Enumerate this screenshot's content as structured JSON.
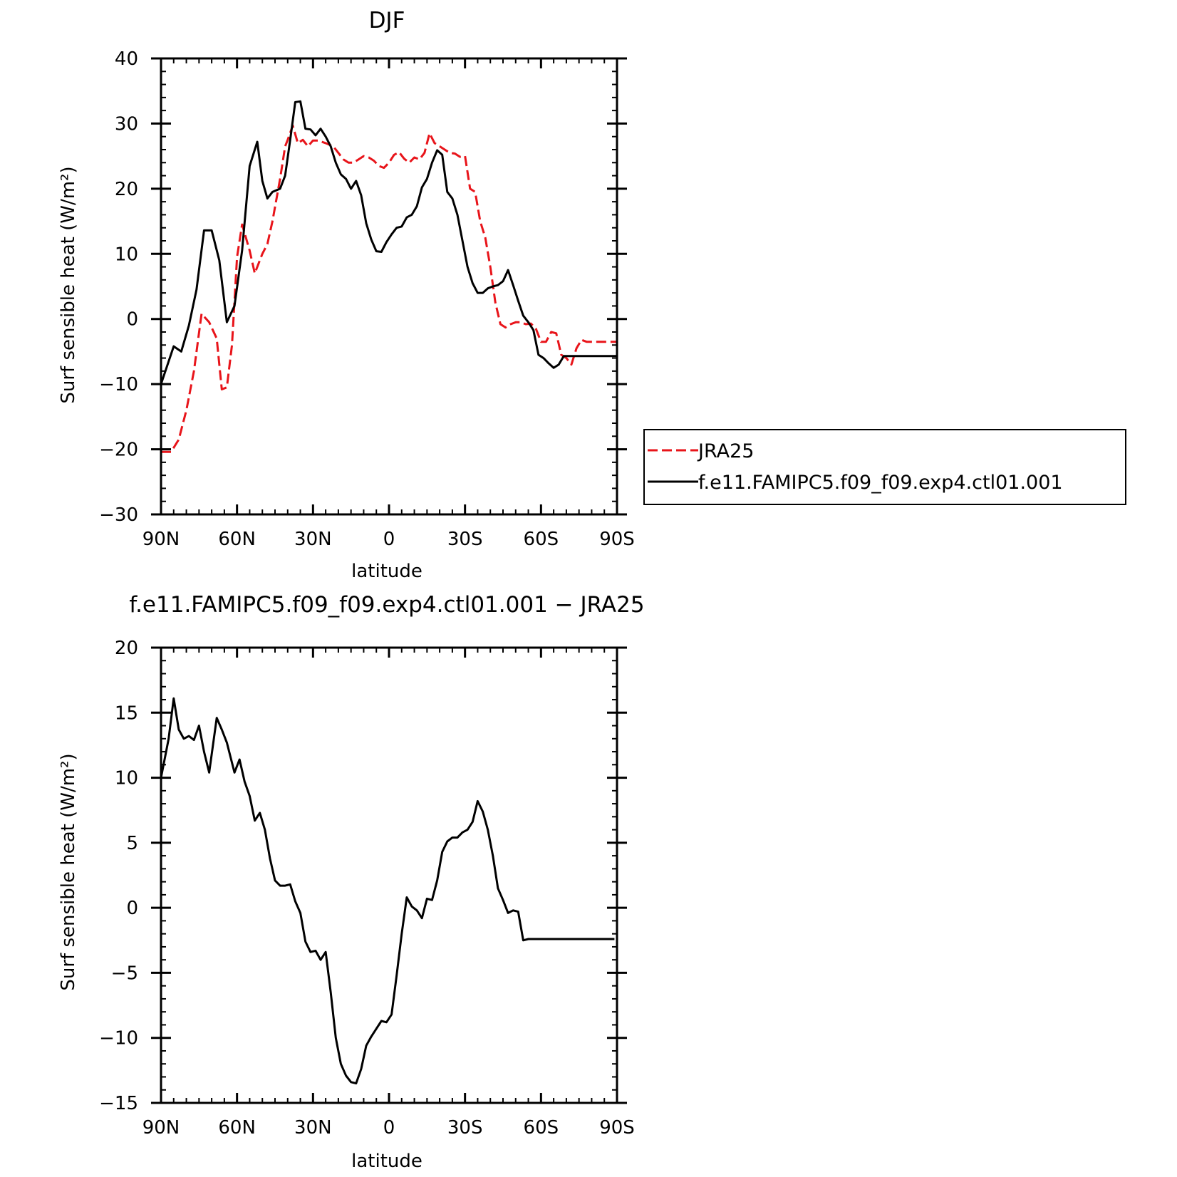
{
  "chart_data": [
    {
      "type": "line",
      "title": "DJF",
      "xlabel": "latitude",
      "ylabel": "Surf sensible heat",
      "ylabel_units": "(W/m²)",
      "xlim": [
        90,
        -90
      ],
      "ylim": [
        -30,
        40
      ],
      "xtick_values": [
        90,
        60,
        30,
        0,
        -30,
        -60,
        -90
      ],
      "xtick_labels": [
        "90N",
        "60N",
        "30N",
        "0",
        "30S",
        "60S",
        "90S"
      ],
      "ytick_values": [
        -30,
        -20,
        -10,
        0,
        10,
        20,
        30,
        40
      ],
      "ytick_labels": [
        "−30",
        "−20",
        "−10",
        "0",
        "10",
        "20",
        "30",
        "40"
      ],
      "legend": {
        "placement": "right",
        "entries": [
          "JRA25",
          "f.e11.FAMIPC5.f09_f09.exp4.ctl01.001"
        ]
      },
      "series": [
        {
          "name": "JRA25",
          "color": "#e8141a",
          "dash": true,
          "x": [
            90,
            86,
            83,
            80,
            77,
            74,
            71,
            68,
            66,
            64,
            62,
            60,
            58,
            55,
            53,
            50,
            48,
            46,
            43,
            41,
            40,
            38,
            36,
            34,
            32,
            30,
            28,
            25,
            22,
            20,
            18,
            16,
            14,
            12,
            10,
            8,
            6,
            4,
            2,
            0,
            -2,
            -4,
            -6,
            -8,
            -10,
            -12,
            -14,
            -16,
            -18,
            -20,
            -22,
            -24,
            -26,
            -28,
            -30,
            -32,
            -34,
            -36,
            -38,
            -40,
            -42,
            -44,
            -46,
            -48,
            -50,
            -52,
            -54,
            -56,
            -58,
            -60,
            -62,
            -64,
            -66,
            -68,
            -70,
            -72,
            -74,
            -76,
            -78,
            -80,
            -82,
            -84,
            -86,
            -88,
            -90
          ],
          "y": [
            -20.4,
            -20.4,
            -18.5,
            -14,
            -8,
            0.8,
            -0.5,
            -3,
            -10.8,
            -10.5,
            -4,
            9.5,
            14.5,
            10.5,
            7,
            10,
            11.5,
            15,
            21.5,
            26.5,
            27.5,
            29.7,
            27,
            27.5,
            26.5,
            27.4,
            27.4,
            27,
            26.5,
            25.5,
            24.5,
            24,
            24,
            24.5,
            25,
            24.8,
            24.3,
            23.5,
            23.2,
            24,
            25.2,
            25.6,
            24.6,
            24,
            24.8,
            24.5,
            25.5,
            28.5,
            27,
            26.5,
            26,
            25.5,
            25.4,
            24.9,
            25,
            20,
            19.5,
            15,
            12.5,
            8,
            2.5,
            -0.8,
            -1.3,
            -0.8,
            -0.5,
            -0.5,
            -0.8,
            -0.7,
            -1.5,
            -3.5,
            -3.5,
            -2,
            -2.2,
            -5.5,
            -6,
            -7,
            -4.5,
            -3.2,
            -3.5,
            -3.5,
            -3.5,
            -3.5,
            -3.5,
            -3.5,
            -3.5
          ]
        },
        {
          "name": "f.e11.FAMIPC5.f09_f09.exp4.ctl01.001",
          "color": "#000000",
          "dash": false,
          "x": [
            90,
            85,
            82,
            79,
            76,
            73,
            70,
            67,
            64,
            61,
            58,
            55,
            52,
            50,
            48,
            46,
            43,
            41,
            39,
            37,
            35,
            33,
            31,
            29,
            27,
            25,
            23,
            21,
            19,
            17,
            15,
            13,
            11,
            9,
            7,
            5,
            3,
            1,
            -1,
            -3,
            -5,
            -7,
            -9,
            -11,
            -13,
            -15,
            -17,
            -19,
            -21,
            -23,
            -25,
            -27,
            -29,
            -31,
            -33,
            -35,
            -37,
            -39,
            -41,
            -43,
            -45,
            -47,
            -49,
            -51,
            -53,
            -55,
            -57,
            -59,
            -61,
            -63,
            -65,
            -67,
            -69,
            -71,
            -73,
            -75,
            -77,
            -79,
            -81,
            -83,
            -85,
            -87,
            -89,
            -90
          ],
          "y": [
            -10,
            -4.2,
            -5,
            -1,
            4.5,
            13.6,
            13.6,
            9,
            -0.5,
            2,
            10.5,
            23.5,
            27.2,
            21.2,
            18.5,
            19.5,
            20,
            22,
            27.5,
            33.3,
            33.4,
            29.2,
            29.1,
            28.2,
            29.2,
            28,
            26.5,
            24,
            22.2,
            21.5,
            20,
            21.2,
            19,
            14.7,
            12.2,
            10.4,
            10.3,
            11.8,
            13,
            14,
            14.2,
            15.6,
            16,
            17.3,
            20.2,
            21.5,
            24,
            25.9,
            25.2,
            19.5,
            18.5,
            16,
            12,
            8,
            5.5,
            4,
            4,
            4.7,
            5,
            5.2,
            5.8,
            7.5,
            5.2,
            2.8,
            0.5,
            -0.5,
            -1.7,
            -5.5,
            -6,
            -6.8,
            -7.5,
            -7,
            -5.7,
            -5.7,
            -5.7,
            -5.7,
            -5.7,
            -5.7,
            -5.7,
            -5.7,
            -5.7,
            -5.7,
            -5.7,
            -5.7
          ]
        }
      ]
    },
    {
      "type": "line",
      "title": "f.e11.FAMIPC5.f09_f09.exp4.ctl01.001 − JRA25",
      "xlabel": "latitude",
      "ylabel": "Surf sensible heat",
      "ylabel_units": "(W/m²)",
      "xlim": [
        90,
        -90
      ],
      "ylim": [
        -15,
        20
      ],
      "xtick_values": [
        90,
        60,
        30,
        0,
        -30,
        -60,
        -90
      ],
      "xtick_labels": [
        "90N",
        "60N",
        "30N",
        "0",
        "30S",
        "60S",
        "90S"
      ],
      "ytick_values": [
        -15,
        -10,
        -5,
        0,
        5,
        10,
        15,
        20
      ],
      "ytick_labels": [
        "−15",
        "−10",
        "−5",
        "0",
        "5",
        "10",
        "15",
        "20"
      ],
      "series": [
        {
          "name": "f.e11.FAMIPC5.f09_f09.exp4.ctl01.001 − JRA25",
          "color": "#000000",
          "dash": false,
          "x": [
            90,
            87,
            85,
            83,
            81,
            79,
            77,
            75,
            73,
            71,
            68,
            66,
            64,
            61,
            59,
            57,
            55,
            53,
            51,
            49,
            47,
            45,
            43,
            41,
            39,
            37,
            35,
            33,
            31,
            29,
            27,
            25,
            23,
            21,
            19,
            17,
            15,
            13,
            11,
            9,
            7,
            5,
            3,
            1,
            -1,
            -3,
            -5,
            -7,
            -9,
            -11,
            -13,
            -15,
            -17,
            -19,
            -21,
            -23,
            -25,
            -27,
            -29,
            -31,
            -33,
            -35,
            -37,
            -39,
            -41,
            -43,
            -45,
            -47,
            -49,
            -51,
            -53,
            -55,
            -57,
            -59,
            -61,
            -63,
            -65,
            -67,
            -69,
            -71,
            -73,
            -75,
            -77,
            -79,
            -81,
            -83,
            -85,
            -87,
            -89
          ],
          "y": [
            10,
            13,
            16.1,
            13.7,
            13,
            13.2,
            12.9,
            14,
            12,
            10.4,
            14.6,
            13.7,
            12.7,
            10.4,
            11.4,
            9.7,
            8.6,
            6.7,
            7.3,
            6,
            3.8,
            2.1,
            1.7,
            1.7,
            1.8,
            0.5,
            -0.4,
            -2.6,
            -3.4,
            -3.3,
            -4,
            -3.4,
            -6.5,
            -10,
            -12,
            -12.9,
            -13.4,
            -13.5,
            -12.4,
            -10.6,
            -9.9,
            -9.3,
            -8.7,
            -8.8,
            -8.2,
            -5.2,
            -2,
            0.8,
            0.1,
            -0.2,
            -0.8,
            0.7,
            0.6,
            2.1,
            4.3,
            5.1,
            5.4,
            5.4,
            5.8,
            6,
            6.6,
            8.2,
            7.4,
            6,
            4,
            1.5,
            0.6,
            -0.4,
            -0.2,
            -0.3,
            -2.5,
            -2.4,
            -2.4,
            -2.4,
            -2.4,
            -2.4,
            -2.4,
            -2.4,
            -2.4,
            -2.4,
            -2.4,
            -2.4,
            -2.4,
            -2.4,
            -2.4,
            -2.4,
            -2.4,
            -2.4,
            -2.4
          ]
        }
      ]
    }
  ]
}
